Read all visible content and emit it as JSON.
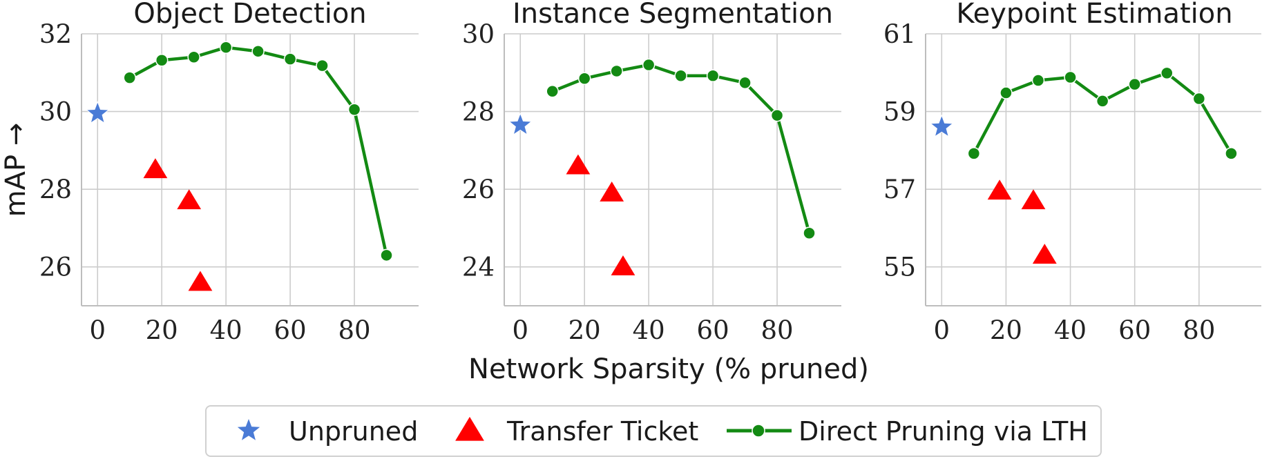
{
  "figure": {
    "ylabel": "mAP →",
    "xlabel": "Network Sparsity (% pruned)"
  },
  "legend": {
    "items": [
      {
        "label": "Unpruned",
        "marker": "star",
        "color": "#4a7bd6"
      },
      {
        "label": "Transfer Ticket",
        "marker": "triangle",
        "color": "#ff0000"
      },
      {
        "label": "Direct Pruning via LTH",
        "marker": "line-dot",
        "color": "#138a13"
      }
    ]
  },
  "chart_data": [
    {
      "type": "line",
      "title": "Object Detection",
      "xlim": [
        -5,
        100
      ],
      "ylim": [
        25,
        32
      ],
      "xticks": [
        0,
        20,
        40,
        60,
        80
      ],
      "yticks": [
        26,
        28,
        30,
        32
      ],
      "grid": true,
      "series": [
        {
          "name": "Unpruned",
          "kind": "scatter",
          "marker": "star",
          "color": "#4a7bd6",
          "x": [
            0
          ],
          "y": [
            29.95
          ]
        },
        {
          "name": "Transfer Ticket",
          "kind": "scatter",
          "marker": "triangle",
          "color": "#ff0000",
          "x": [
            18,
            28.5,
            32
          ],
          "y": [
            28.5,
            27.7,
            25.6
          ]
        },
        {
          "name": "Direct Pruning via LTH",
          "kind": "line",
          "marker": "circle",
          "color": "#138a13",
          "x": [
            10,
            20,
            30,
            40,
            50,
            60,
            70,
            80,
            90
          ],
          "y": [
            30.87,
            31.32,
            31.4,
            31.65,
            31.55,
            31.35,
            31.18,
            30.05,
            26.3
          ]
        }
      ]
    },
    {
      "type": "line",
      "title": "Instance Segmentation",
      "xlim": [
        -5,
        100
      ],
      "ylim": [
        23,
        30
      ],
      "xticks": [
        0,
        20,
        40,
        60,
        80
      ],
      "yticks": [
        24,
        26,
        28,
        30
      ],
      "grid": true,
      "series": [
        {
          "name": "Unpruned",
          "kind": "scatter",
          "marker": "star",
          "color": "#4a7bd6",
          "x": [
            0
          ],
          "y": [
            27.65
          ]
        },
        {
          "name": "Transfer Ticket",
          "kind": "scatter",
          "marker": "triangle",
          "color": "#ff0000",
          "x": [
            18,
            28.5,
            32
          ],
          "y": [
            26.6,
            25.9,
            24.0
          ]
        },
        {
          "name": "Direct Pruning via LTH",
          "kind": "line",
          "marker": "circle",
          "color": "#138a13",
          "x": [
            10,
            20,
            30,
            40,
            50,
            60,
            70,
            80,
            90
          ],
          "y": [
            28.52,
            28.85,
            29.04,
            29.2,
            28.92,
            28.92,
            28.74,
            27.9,
            24.87
          ]
        }
      ]
    },
    {
      "type": "line",
      "title": "Keypoint Estimation",
      "xlim": [
        -5,
        100
      ],
      "ylim": [
        54,
        61
      ],
      "xticks": [
        0,
        20,
        40,
        60,
        80
      ],
      "yticks": [
        55,
        57,
        59,
        61
      ],
      "grid": true,
      "series": [
        {
          "name": "Unpruned",
          "kind": "scatter",
          "marker": "star",
          "color": "#4a7bd6",
          "x": [
            0
          ],
          "y": [
            58.6
          ]
        },
        {
          "name": "Transfer Ticket",
          "kind": "scatter",
          "marker": "triangle",
          "color": "#ff0000",
          "x": [
            18,
            28.5,
            32
          ],
          "y": [
            56.95,
            56.7,
            55.3
          ]
        },
        {
          "name": "Direct Pruning via LTH",
          "kind": "line",
          "marker": "circle",
          "color": "#138a13",
          "x": [
            10,
            20,
            30,
            40,
            50,
            60,
            70,
            80,
            90
          ],
          "y": [
            57.92,
            59.48,
            59.8,
            59.88,
            59.27,
            59.7,
            59.99,
            59.33,
            57.92
          ]
        }
      ]
    }
  ]
}
